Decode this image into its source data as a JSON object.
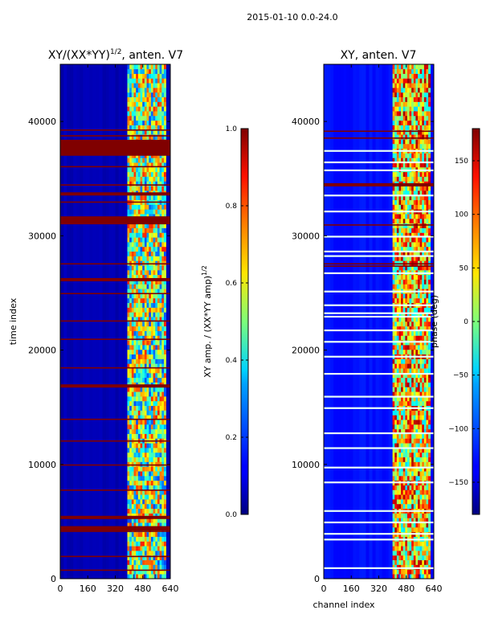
{
  "figure_title": "2015-01-10 0.0-24.0",
  "colors": {
    "nan": "#800000",
    "frame": "#000000"
  },
  "chart_data": [
    {
      "type": "heatmap",
      "title_main": "XY/(XX*YY)",
      "title_sup": "1/2",
      "title_tail": ", anten. V7",
      "xlabel": "",
      "ylabel": "time index",
      "xlim": [
        0,
        640
      ],
      "ylim": [
        0,
        45000
      ],
      "xticks": [
        0,
        160,
        320,
        480,
        640
      ],
      "yticks": [
        0,
        10000,
        20000,
        30000,
        40000
      ],
      "colorbar": {
        "label_main": "XY amp. / (XX*YY amp)",
        "label_sup": "1/2",
        "min": 0.0,
        "max": 1.0,
        "ticks": [
          "0.0",
          "0.2",
          "0.4",
          "0.6",
          "0.8",
          "1.0"
        ],
        "tick_values": [
          0.0,
          0.2,
          0.4,
          0.6,
          0.8,
          1.0
        ]
      },
      "background_value": 0.05,
      "active_band": {
        "channel_start": 390,
        "channel_end": 615,
        "value_low": 0.2,
        "value_high": 0.85
      },
      "flagged_rows_time": [
        39300,
        38800,
        37900,
        37600,
        37200,
        36100,
        34500,
        33800,
        33000,
        31500,
        31200,
        27600,
        26300,
        25000,
        22600,
        21000,
        18500,
        17000,
        14000,
        12100,
        10000,
        7800,
        5500,
        4500,
        4200,
        2000,
        800
      ]
    },
    {
      "type": "heatmap",
      "title_main": "XY, anten. V7",
      "xlabel": "channel index",
      "ylabel": "",
      "xlim": [
        0,
        640
      ],
      "ylim": [
        0,
        45000
      ],
      "xticks": [
        0,
        160,
        320,
        480,
        640
      ],
      "yticks": [
        0,
        10000,
        20000,
        30000,
        40000
      ],
      "colorbar": {
        "label_main": "phase (deg)",
        "min": -180,
        "max": 180,
        "ticks": [
          "150",
          "100",
          "50",
          "0",
          "−50",
          "−100",
          "−150"
        ],
        "tick_values": [
          150,
          100,
          50,
          0,
          -50,
          -100,
          -150
        ]
      },
      "background_value": -130,
      "active_band": {
        "channel_start": 400,
        "channel_end": 620,
        "value_low": -60,
        "value_high": 170
      },
      "flagged_rows_time": [
        39200,
        38600,
        34600,
        31000,
        27600,
        27400
      ],
      "bright_rows_time": [
        37500,
        36500,
        35800,
        33600,
        32200,
        30000,
        28700,
        28300,
        26800,
        25200,
        24000,
        23300,
        23000,
        21800,
        20800,
        19500,
        18000,
        16000,
        15000,
        12800,
        11500,
        9800,
        8500,
        6000,
        5000,
        4000,
        3500,
        1000
      ]
    }
  ]
}
